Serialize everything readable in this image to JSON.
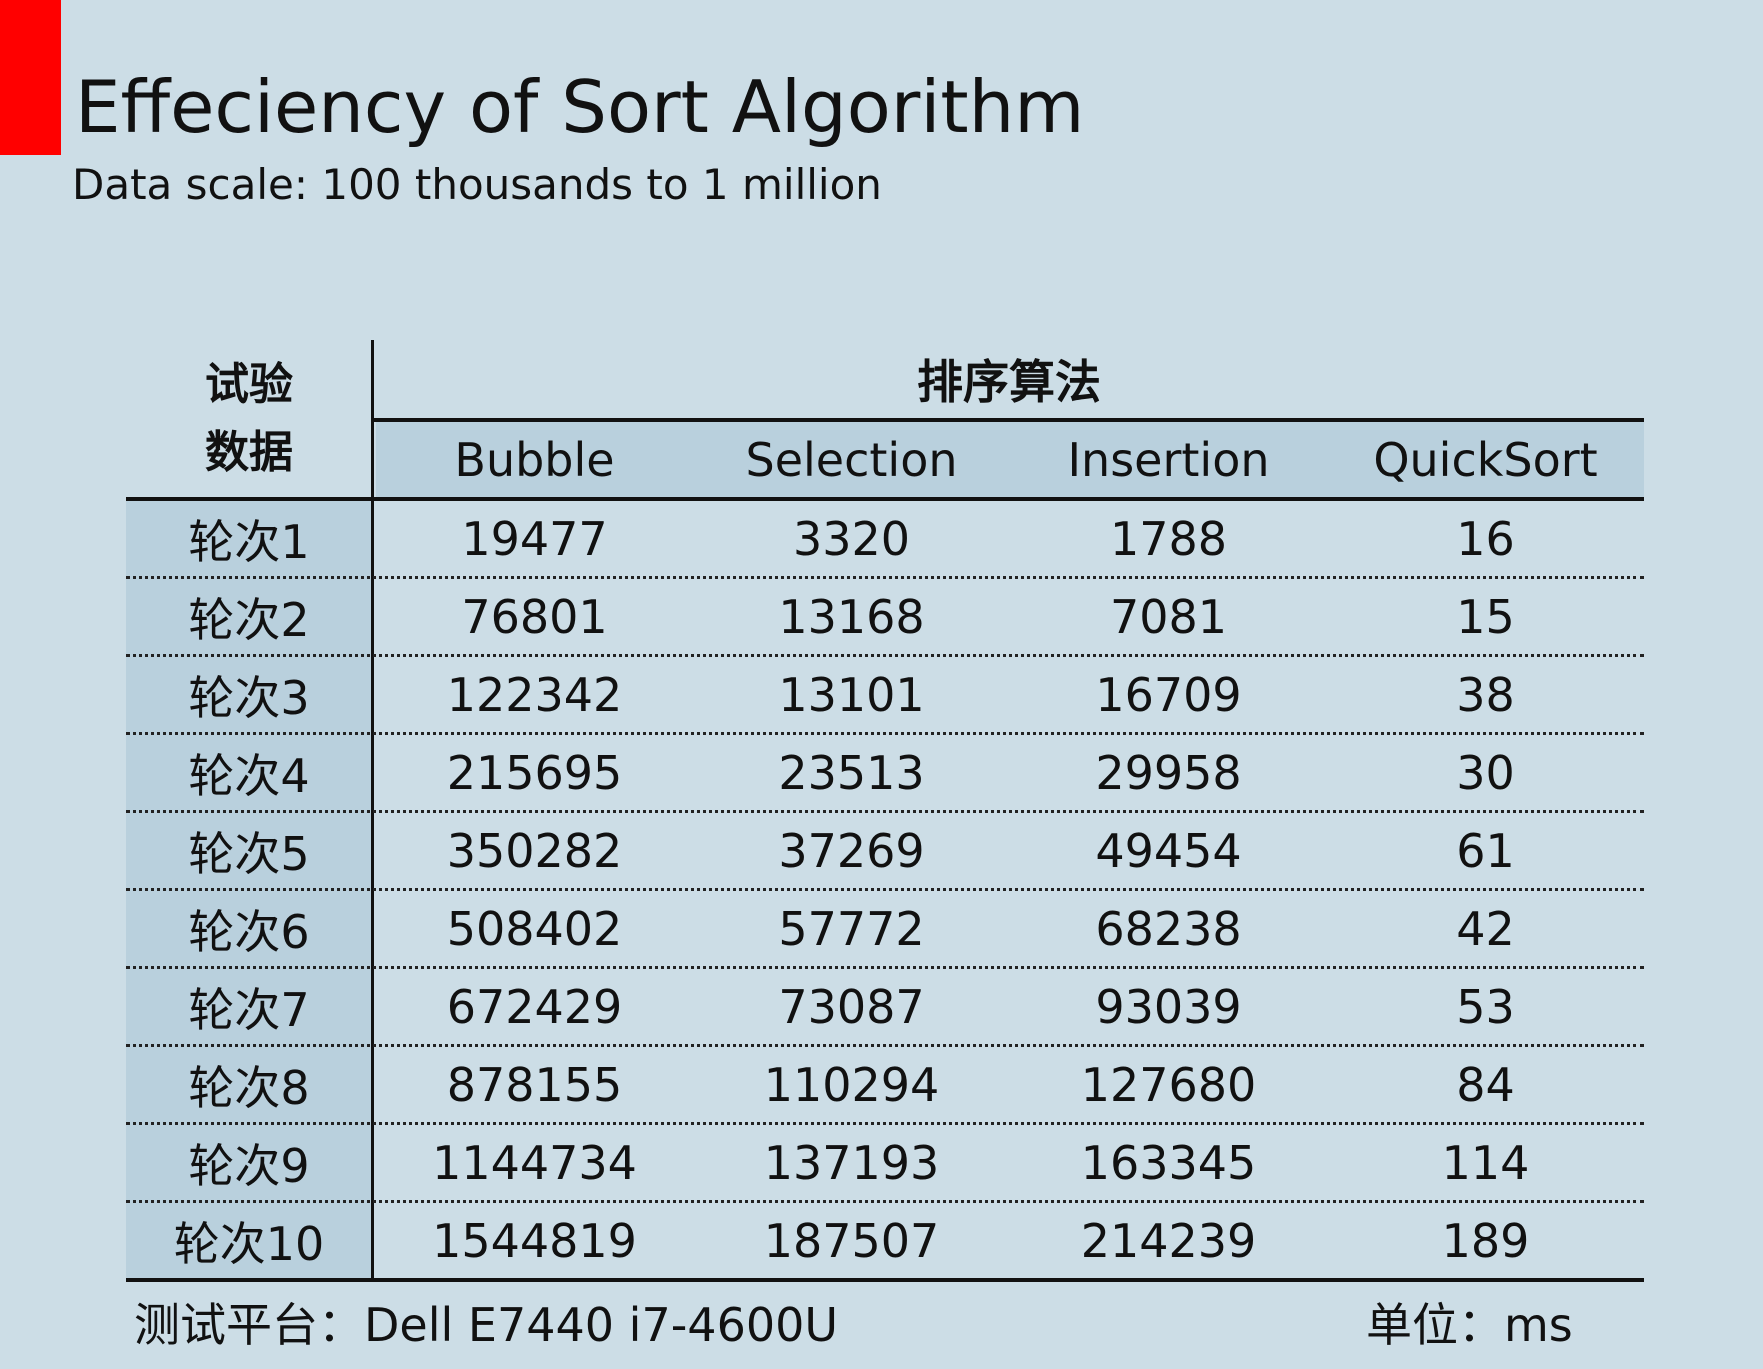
{
  "slide": {
    "accent_color": "#ff0000",
    "background_color": "#ccdde6",
    "title": "Effeciency of Sort Algorithm",
    "subtitle": "Data scale: 100 thousands to 1 million"
  },
  "chart_data": {
    "type": "table",
    "row_header_label_line1": "试验",
    "row_header_label_line2": "数据",
    "column_group_label": "排序算法",
    "columns": [
      "Bubble",
      "Selection",
      "Insertion",
      "QuickSort"
    ],
    "rows": [
      {
        "label": "轮次1",
        "values": [
          19477,
          3320,
          1788,
          16
        ]
      },
      {
        "label": "轮次2",
        "values": [
          76801,
          13168,
          7081,
          15
        ]
      },
      {
        "label": "轮次3",
        "values": [
          122342,
          13101,
          16709,
          38
        ]
      },
      {
        "label": "轮次4",
        "values": [
          215695,
          23513,
          29958,
          30
        ]
      },
      {
        "label": "轮次5",
        "values": [
          350282,
          37269,
          49454,
          61
        ]
      },
      {
        "label": "轮次6",
        "values": [
          508402,
          57772,
          68238,
          42
        ]
      },
      {
        "label": "轮次7",
        "values": [
          672429,
          73087,
          93039,
          53
        ]
      },
      {
        "label": "轮次8",
        "values": [
          878155,
          110294,
          127680,
          84
        ]
      },
      {
        "label": "轮次9",
        "values": [
          1144734,
          137193,
          163345,
          114
        ]
      },
      {
        "label": "轮次10",
        "values": [
          1544819,
          187507,
          214239,
          189
        ]
      }
    ]
  },
  "footer": {
    "platform": "测试平台：Dell E7440 i7-4600U",
    "unit": "单位：ms"
  }
}
